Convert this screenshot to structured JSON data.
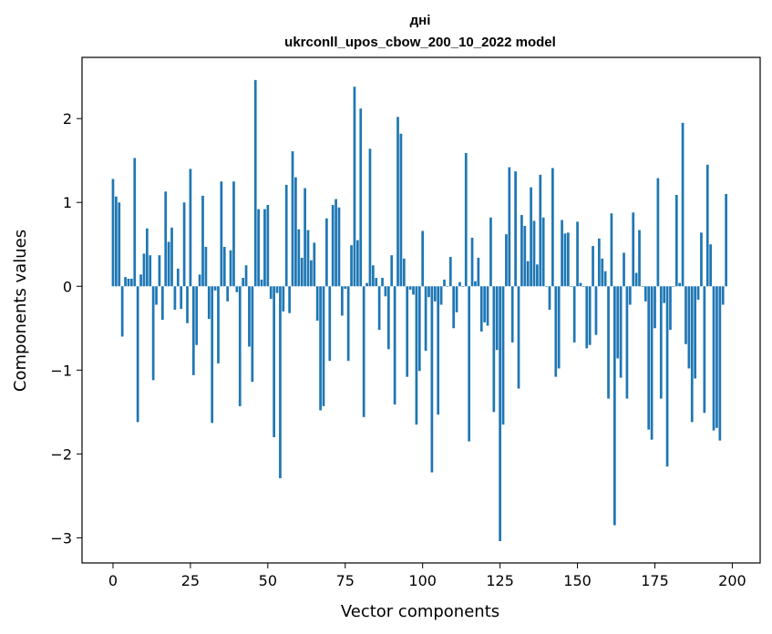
{
  "chart_data": {
    "type": "bar",
    "title": "дні",
    "subtitle": "ukrconll_upos_cbow_200_10_2022 model",
    "xlabel": "Vector components",
    "ylabel": "Components values",
    "xlim": [
      -10,
      209
    ],
    "ylim": [
      -3.3,
      2.73
    ],
    "xticks": [
      0,
      25,
      50,
      75,
      100,
      125,
      150,
      175,
      200
    ],
    "yticks": [
      -3,
      -2,
      -1,
      0,
      1,
      2
    ],
    "ytick_labels": [
      "−3",
      "−2",
      "−1",
      "0",
      "1",
      "2"
    ],
    "bar_color": "#1f77b4",
    "grid": false,
    "legend": "none",
    "values": [
      1.28,
      1.07,
      1.0,
      -0.6,
      0.11,
      0.09,
      0.09,
      1.53,
      -1.62,
      0.14,
      0.39,
      0.69,
      0.37,
      -1.12,
      -0.22,
      0.37,
      -0.4,
      1.13,
      0.53,
      0.7,
      -0.28,
      0.21,
      -0.27,
      1.0,
      -0.44,
      1.4,
      -1.06,
      -0.7,
      0.14,
      1.08,
      0.47,
      -0.39,
      -1.63,
      -0.05,
      -0.92,
      1.25,
      0.47,
      -0.18,
      0.43,
      1.25,
      -0.07,
      -1.43,
      0.1,
      0.25,
      -0.72,
      -1.14,
      2.46,
      0.92,
      0.08,
      0.92,
      0.97,
      -0.15,
      -1.8,
      -0.08,
      -2.29,
      -0.3,
      1.21,
      -0.32,
      1.61,
      1.3,
      0.68,
      0.34,
      1.17,
      0.67,
      0.31,
      0.52,
      -0.41,
      -1.48,
      -1.43,
      0.81,
      -0.89,
      0.97,
      1.04,
      0.94,
      -0.35,
      -0.03,
      -0.89,
      0.49,
      2.38,
      0.55,
      2.12,
      -1.56,
      0.04,
      1.64,
      0.25,
      0.1,
      -0.52,
      0.1,
      -0.12,
      -0.75,
      0.37,
      -1.41,
      2.02,
      1.82,
      0.33,
      -1.08,
      -0.04,
      -0.1,
      -1.65,
      -1.01,
      0.66,
      -0.77,
      -0.13,
      -2.22,
      -0.18,
      -1.53,
      -0.22,
      0.08,
      0.0,
      0.35,
      -0.5,
      -0.31,
      0.05,
      0.0,
      1.59,
      -1.85,
      0.58,
      0.06,
      0.34,
      -0.54,
      -0.43,
      -0.47,
      0.82,
      -1.5,
      -0.76,
      -3.04,
      -1.65,
      0.62,
      1.42,
      -0.67,
      1.37,
      -1.22,
      0.85,
      0.72,
      0.3,
      1.18,
      0.78,
      0.26,
      1.33,
      0.82,
      0.0,
      -0.28,
      1.41,
      -1.08,
      -0.98,
      0.79,
      0.63,
      0.64,
      0.0,
      -0.67,
      0.77,
      0.04,
      0.0,
      -0.74,
      -0.7,
      0.48,
      -0.58,
      0.57,
      0.33,
      0.18,
      -1.34,
      0.87,
      -2.85,
      -0.86,
      -1.09,
      0.4,
      -1.34,
      -0.22,
      0.88,
      0.16,
      0.67,
      0.0,
      -0.18,
      -1.71,
      -1.83,
      -0.5,
      1.29,
      -1.34,
      -0.2,
      -2.15,
      -0.52,
      0.0,
      1.09,
      0.04,
      1.95,
      -0.69,
      -0.98,
      -1.62,
      -1.1,
      -0.16,
      0.64,
      -1.51,
      1.45,
      0.5,
      -1.72,
      -1.69,
      -1.84,
      -0.22,
      1.1
    ]
  }
}
